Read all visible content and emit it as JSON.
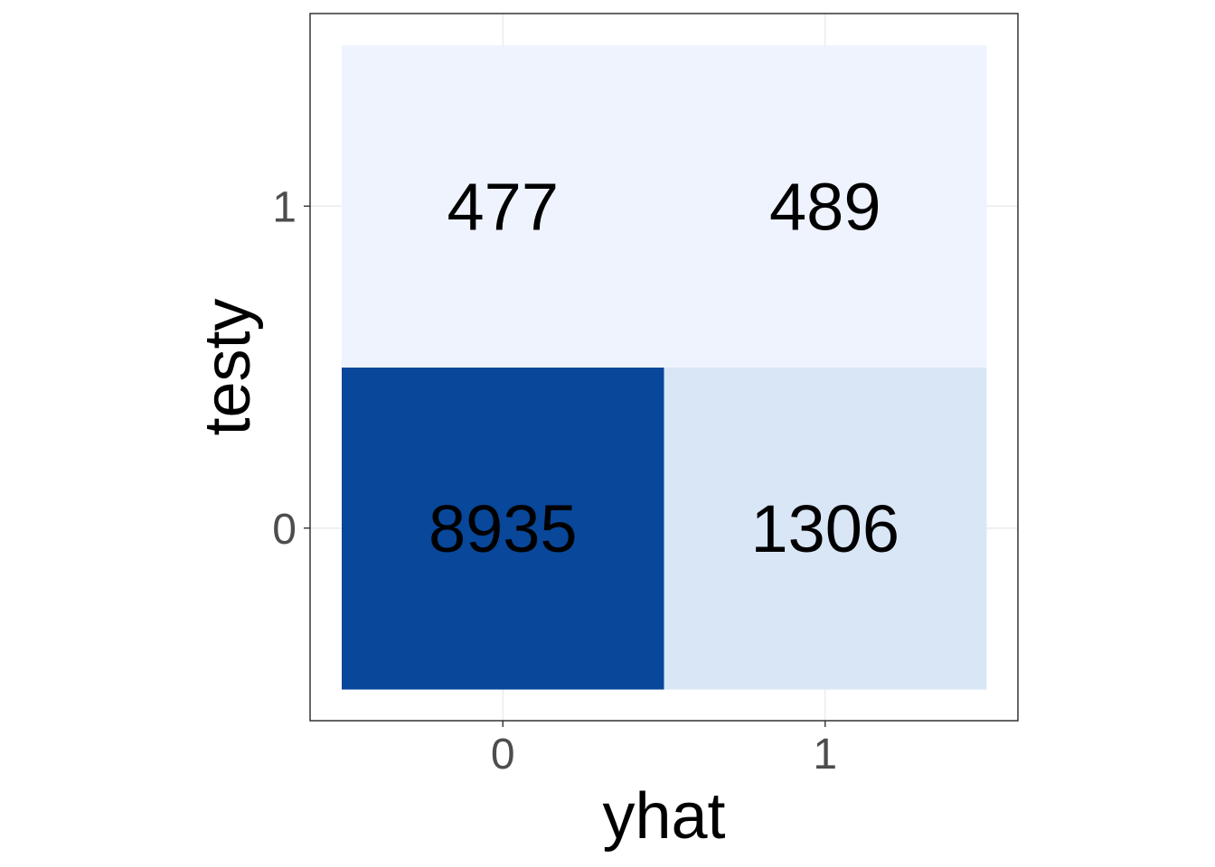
{
  "chart_data": {
    "type": "heatmap",
    "x_categories": [
      "0",
      "1"
    ],
    "y_categories": [
      "0",
      "1"
    ],
    "cells": [
      {
        "x": "0",
        "y": "0",
        "value": 8935,
        "label": "8935",
        "color": "#08479a"
      },
      {
        "x": "1",
        "y": "0",
        "value": 1306,
        "label": "1306",
        "color": "#d9e6f6"
      },
      {
        "x": "0",
        "y": "1",
        "value": 477,
        "label": "477",
        "color": "#eef3fe"
      },
      {
        "x": "1",
        "y": "1",
        "value": 489,
        "label": "489",
        "color": "#eef3fe"
      }
    ],
    "xlabel": "yhat",
    "ylabel": "testy",
    "grid": true,
    "legend": "none",
    "colors": {
      "panel_border": "#333333",
      "grid": "#ebebeb",
      "tick_text": "#4d4d4d",
      "low": "#eef3fe",
      "high": "#08479a"
    }
  }
}
